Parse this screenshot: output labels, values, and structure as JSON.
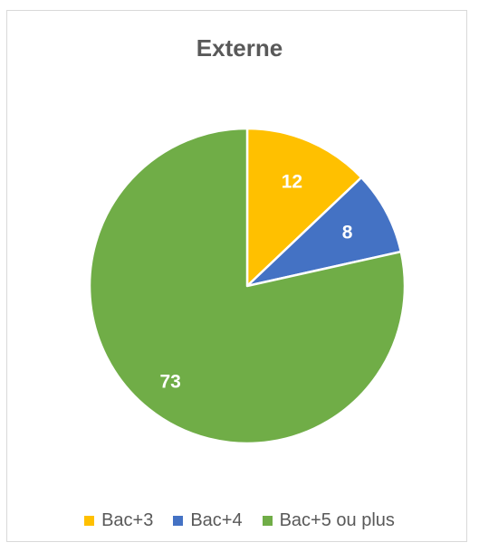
{
  "chart_data": {
    "type": "pie",
    "title": "Externe",
    "slices": [
      {
        "label": "Bac+3",
        "value": 12,
        "color": "#FFC000"
      },
      {
        "label": "Bac+4",
        "value": 8,
        "color": "#4472C4"
      },
      {
        "label": "Bac+5 ou plus",
        "value": 73,
        "color": "#70AD47"
      }
    ],
    "data_labels": [
      "12",
      "8",
      "73"
    ],
    "legend": {
      "position": "bottom",
      "items": [
        "Bac+3",
        "Bac+4",
        "Bac+5 ou plus"
      ]
    },
    "start_angle": "top",
    "direction": "clockwise"
  }
}
